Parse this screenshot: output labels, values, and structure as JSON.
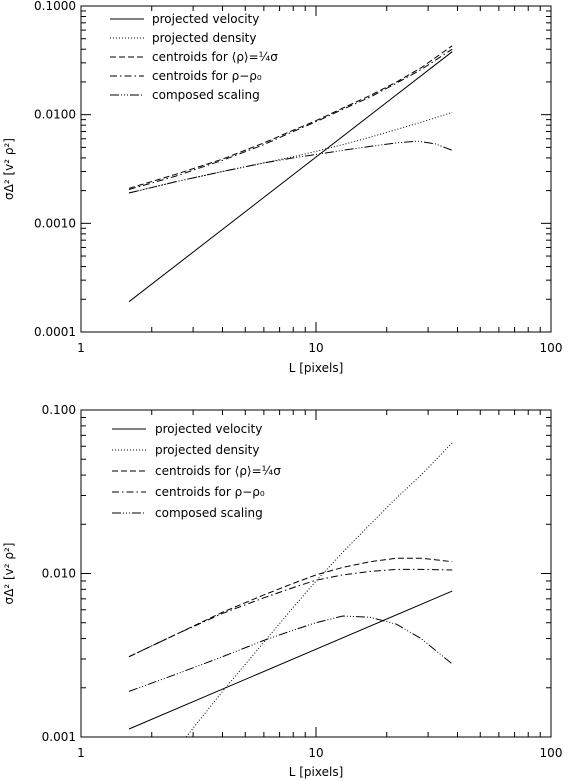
{
  "chart_data": [
    {
      "type": "line",
      "xlabel": "L [pixels]",
      "ylabel": "σΔ² [v² ρ²]",
      "xscale": "log",
      "yscale": "log",
      "xlim": [
        1,
        100
      ],
      "ylim": [
        0.0001,
        0.1
      ],
      "xticks": [
        1,
        10,
        100
      ],
      "xtick_labels": [
        "1",
        "10",
        "100"
      ],
      "yticks": [
        0.0001,
        0.001,
        0.01,
        0.1
      ],
      "ytick_labels": [
        "0.0001",
        "0.0010",
        "0.0100",
        "0.1000"
      ],
      "grid": false,
      "legend_position": "top-left",
      "series": [
        {
          "name": "projected velocity",
          "style": "solid",
          "x": [
            1.6,
            38
          ],
          "y": [
            0.00019,
            0.038
          ]
        },
        {
          "name": "projected density",
          "style": "dotted",
          "x": [
            1.6,
            2.5,
            4,
            6,
            8,
            10,
            13,
            17,
            22,
            28,
            38
          ],
          "y": [
            0.0019,
            0.0024,
            0.003,
            0.0036,
            0.0041,
            0.0046,
            0.0053,
            0.0062,
            0.0073,
            0.0085,
            0.0105
          ]
        },
        {
          "name": "centroids for ⟨ρ⟩=¼σ",
          "style": "dashed",
          "x": [
            1.6,
            2.5,
            4,
            6,
            8,
            10,
            13,
            17,
            22,
            28,
            38
          ],
          "y": [
            0.0021,
            0.0028,
            0.0039,
            0.0055,
            0.0072,
            0.0088,
            0.0115,
            0.015,
            0.02,
            0.027,
            0.043
          ]
        },
        {
          "name": "centroids for ρ−ρ₀",
          "style": "dashdot",
          "x": [
            1.6,
            2.5,
            4,
            6,
            8,
            10,
            13,
            17,
            22,
            28,
            38
          ],
          "y": [
            0.00205,
            0.0027,
            0.0038,
            0.0053,
            0.007,
            0.0086,
            0.0112,
            0.0145,
            0.0195,
            0.026,
            0.04
          ]
        },
        {
          "name": "composed scaling",
          "style": "dashdotdotdot",
          "x": [
            1.6,
            2.5,
            4,
            6,
            8,
            10,
            13,
            17,
            22,
            27,
            32,
            38
          ],
          "y": [
            0.0019,
            0.0024,
            0.003,
            0.0036,
            0.004,
            0.0043,
            0.0047,
            0.0051,
            0.0055,
            0.0057,
            0.0054,
            0.0047
          ]
        }
      ]
    },
    {
      "type": "line",
      "xlabel": "L [pixels]",
      "ylabel": "σΔ² [v² ρ²]",
      "xscale": "log",
      "yscale": "log",
      "xlim": [
        1,
        100
      ],
      "ylim": [
        0.001,
        0.1
      ],
      "xticks": [
        1,
        10,
        100
      ],
      "xtick_labels": [
        "1",
        "10",
        "100"
      ],
      "yticks": [
        0.001,
        0.01,
        0.1
      ],
      "ytick_labels": [
        "0.001",
        "0.010",
        "0.100"
      ],
      "grid": false,
      "legend_position": "top-left",
      "series": [
        {
          "name": "projected velocity",
          "style": "solid",
          "x": [
            1.6,
            38
          ],
          "y": [
            0.00112,
            0.0078
          ]
        },
        {
          "name": "projected density",
          "style": "dotted",
          "x": [
            2.8,
            4,
            6,
            8,
            10,
            13,
            17,
            22,
            28,
            38
          ],
          "y": [
            0.001,
            0.0019,
            0.0038,
            0.0062,
            0.009,
            0.0135,
            0.02,
            0.029,
            0.04,
            0.063
          ]
        },
        {
          "name": "centroids for ⟨ρ⟩=¼σ",
          "style": "dashed",
          "x": [
            1.6,
            2.5,
            4,
            6,
            8,
            10,
            13,
            17,
            22,
            28,
            38
          ],
          "y": [
            0.0031,
            0.0042,
            0.0058,
            0.0074,
            0.0087,
            0.0098,
            0.0109,
            0.0118,
            0.0124,
            0.0124,
            0.0118
          ]
        },
        {
          "name": "centroids for ρ−ρ₀",
          "style": "dashdot",
          "x": [
            1.6,
            2.5,
            4,
            6,
            8,
            10,
            13,
            17,
            22,
            28,
            38
          ],
          "y": [
            0.0031,
            0.0042,
            0.0057,
            0.0071,
            0.0082,
            0.0091,
            0.0098,
            0.0103,
            0.0106,
            0.0106,
            0.0105
          ]
        },
        {
          "name": "composed scaling",
          "style": "dashdotdotdot",
          "x": [
            1.6,
            2.5,
            4,
            6,
            8,
            10,
            13,
            17,
            22,
            28,
            38
          ],
          "y": [
            0.0019,
            0.0024,
            0.0031,
            0.0039,
            0.0045,
            0.005,
            0.0055,
            0.0054,
            0.0049,
            0.004,
            0.0028
          ]
        }
      ]
    }
  ]
}
